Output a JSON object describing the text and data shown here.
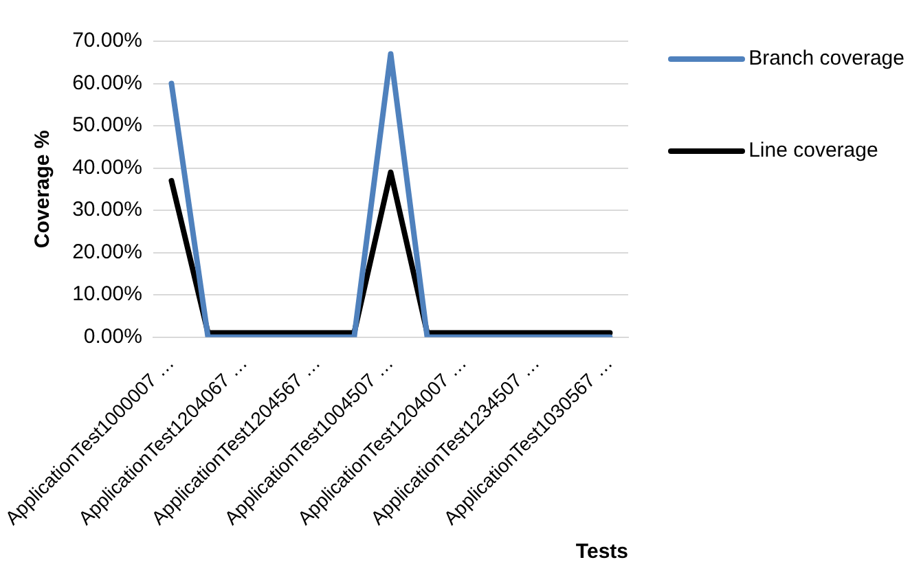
{
  "chart_data": {
    "type": "line",
    "xlabel": "Tests",
    "ylabel": "Coverage %",
    "categories": [
      "ApplicationTest1000007 …",
      null,
      "ApplicationTest1204067 …",
      null,
      "ApplicationTest1204567 …",
      null,
      "ApplicationTest1004507 …",
      null,
      "ApplicationTest1204007 …",
      null,
      "ApplicationTest1234507 …",
      null,
      "ApplicationTest1030567 …"
    ],
    "series": [
      {
        "name": "Branch coverage",
        "color": "#4f81bd",
        "values": [
          60,
          0,
          0,
          0,
          0,
          0,
          67,
          0,
          0,
          0,
          0,
          0,
          0
        ]
      },
      {
        "name": "Line coverage",
        "color": "#000000",
        "values": [
          37,
          1,
          1,
          1,
          1,
          1,
          39,
          1,
          1,
          1,
          1,
          1,
          1
        ]
      }
    ],
    "ylim": [
      0,
      70
    ],
    "yticks": [
      {
        "value": 0,
        "label": "0.00%"
      },
      {
        "value": 10,
        "label": "10.00%"
      },
      {
        "value": 20,
        "label": "20.00%"
      },
      {
        "value": 30,
        "label": "30.00%"
      },
      {
        "value": 40,
        "label": "40.00%"
      },
      {
        "value": 50,
        "label": "50.00%"
      },
      {
        "value": 60,
        "label": "60.00%"
      },
      {
        "value": 70,
        "label": "70.00%"
      }
    ],
    "grid": "y",
    "legend": "top right",
    "marker": "none",
    "line_style": "solid"
  }
}
